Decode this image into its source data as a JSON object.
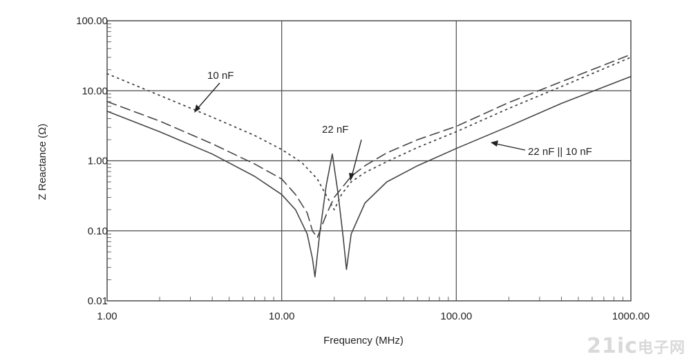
{
  "chart_data": {
    "type": "line",
    "xlabel": "Frequency (MHz)",
    "ylabel": "Z Reactance (Ω)",
    "x_scale": "log",
    "y_scale": "log",
    "xlim": [
      1,
      1000
    ],
    "ylim": [
      0.01,
      100
    ],
    "grid": true,
    "x_ticks": [
      "1.00",
      "10.00",
      "100.00",
      "1000.00"
    ],
    "y_ticks": [
      "0.01",
      "0.10",
      "1.00",
      "10.00",
      "100.00"
    ],
    "series": [
      {
        "name": "10 nF",
        "style": "dotted",
        "x": [
          1,
          2,
          4,
          7,
          10,
          13,
          16,
          18,
          20,
          22,
          25,
          30,
          40,
          60,
          100,
          200,
          400,
          1000
        ],
        "y": [
          17.5,
          8.6,
          4.2,
          2.3,
          1.45,
          0.95,
          0.55,
          0.32,
          0.2,
          0.33,
          0.5,
          0.68,
          0.97,
          1.55,
          2.6,
          5.6,
          11.5,
          30
        ]
      },
      {
        "name": "22 nF",
        "style": "dashed",
        "x": [
          1,
          2,
          4,
          7,
          10,
          12,
          14,
          15,
          16,
          18,
          20,
          25,
          30,
          40,
          60,
          100,
          200,
          400,
          1000
        ],
        "y": [
          7,
          3.7,
          1.75,
          0.9,
          0.55,
          0.33,
          0.18,
          0.1,
          0.08,
          0.17,
          0.3,
          0.6,
          0.85,
          1.3,
          2.0,
          3.1,
          6.8,
          13.5,
          33
        ]
      },
      {
        "name": "22 nF || 10 nF",
        "style": "solid",
        "x": [
          1,
          2,
          4,
          7,
          10,
          12,
          14,
          15,
          15.5,
          16.5,
          18,
          19.5,
          21,
          22.5,
          23.5,
          25,
          30,
          40,
          60,
          100,
          200,
          400,
          1000
        ],
        "y": [
          5.1,
          2.6,
          1.25,
          0.6,
          0.33,
          0.2,
          0.09,
          0.04,
          0.022,
          0.09,
          0.45,
          1.25,
          0.35,
          0.08,
          0.028,
          0.09,
          0.25,
          0.5,
          0.85,
          1.5,
          3.1,
          6.6,
          16
        ]
      }
    ],
    "annotations": [
      "10 nF",
      "22 nF",
      "22 nF || 10 nF"
    ]
  },
  "colors": {
    "curve": "#444444",
    "grid": "#4a4a4a",
    "minor_tick": "#666666"
  },
  "watermark": {
    "main": "21ic",
    "cn": "电子网"
  }
}
